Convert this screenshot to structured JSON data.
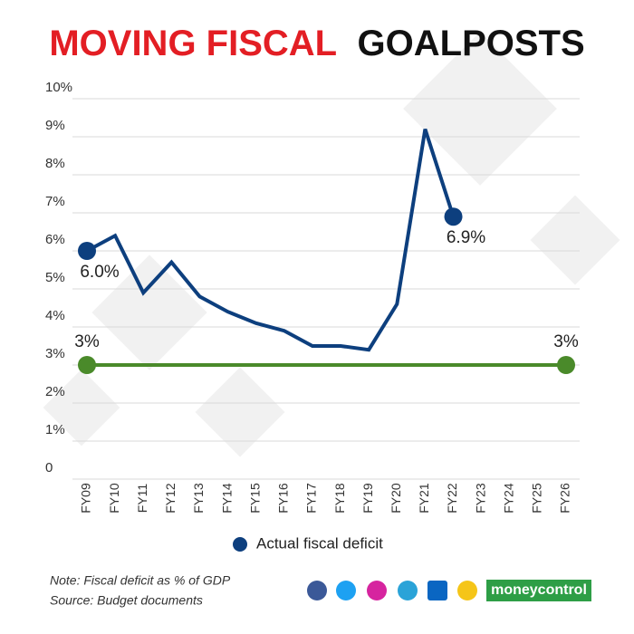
{
  "chart_data": {
    "type": "line",
    "title": [
      "MOVING FISCAL",
      "GOALPOSTS"
    ],
    "categories": [
      "FY09",
      "FY10",
      "FY11",
      "FY12",
      "FY13",
      "FY14",
      "FY15",
      "FY16",
      "FY17",
      "FY18",
      "FY19",
      "FY20",
      "FY21",
      "FY22",
      "FY23",
      "FY24",
      "FY25",
      "FY26"
    ],
    "series": [
      {
        "name": "Actual fiscal deficit",
        "color": "#0d3f7e",
        "values": [
          6.0,
          6.4,
          4.9,
          5.7,
          4.8,
          4.4,
          4.1,
          3.9,
          3.5,
          3.5,
          3.4,
          4.6,
          9.2,
          6.9,
          null,
          null,
          null,
          null
        ],
        "value_labels": [
          "6.0%",
          null,
          null,
          null,
          null,
          null,
          null,
          null,
          null,
          null,
          null,
          null,
          null,
          "6.9%",
          null,
          null,
          null,
          null
        ]
      },
      {
        "color": "#4a8a2a",
        "values": [
          3,
          3,
          3,
          3,
          3,
          3,
          3,
          3,
          3,
          3,
          3,
          3,
          3,
          3,
          3,
          3,
          3,
          3
        ],
        "value_labels": [
          "3%",
          null,
          null,
          null,
          null,
          null,
          null,
          null,
          null,
          null,
          null,
          null,
          null,
          null,
          null,
          null,
          null,
          "3%"
        ]
      }
    ],
    "ylim": [
      0,
      10
    ],
    "yticks": [
      0,
      {
        "value": 1,
        "label": "1%"
      },
      {
        "value": 2,
        "label": "2%"
      },
      {
        "value": 3,
        "label": "3%"
      },
      {
        "value": 4,
        "label": "4%"
      },
      {
        "value": 5,
        "label": "5%"
      },
      {
        "value": 6,
        "label": "6%"
      },
      {
        "value": 7,
        "label": "7%"
      },
      {
        "value": 8,
        "label": "8%"
      },
      {
        "value": 9,
        "label": "9%"
      },
      {
        "value": 10,
        "label": "10%"
      }
    ],
    "grid": true,
    "legend": "bottom",
    "note": "Note: Fiscal deficit as % of GDP",
    "source": "Source: Budget documents",
    "brand": "moneycontrol"
  }
}
